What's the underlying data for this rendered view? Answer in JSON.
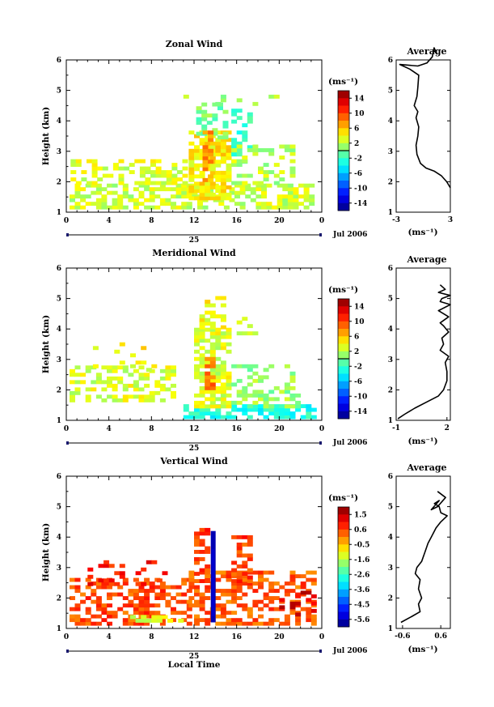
{
  "figure": {
    "date_label": "Jul 2006",
    "day_label": "25",
    "bottom_xlabel": "Local Time"
  },
  "chart_data": [
    {
      "type": "heatmap",
      "title": "Zonal Wind",
      "xlabel": "",
      "ylabel": "Height (km)",
      "xlim": [
        0,
        24
      ],
      "ylim": [
        1,
        6
      ],
      "xticks": [
        "0",
        "4",
        "8",
        "12",
        "16",
        "20",
        "0"
      ],
      "yticks": [
        "1",
        "2",
        "3",
        "4",
        "5",
        "6"
      ],
      "colorbar": {
        "unit": "(ms⁻¹)",
        "levels": [
          "14",
          "10",
          "6",
          "2",
          "-2",
          "-6",
          "-10",
          "-14"
        ],
        "range": [
          -16,
          16
        ],
        "marker": 0
      },
      "cells": [
        {
          "t0": 0.3,
          "t1": 23,
          "h0": 1.1,
          "h1": 1.9,
          "v": 2.5,
          "density": 0.55
        },
        {
          "t0": 0.4,
          "t1": 11,
          "h0": 1.9,
          "h1": 2.7,
          "v": 3,
          "density": 0.4
        },
        {
          "t0": 11.5,
          "t1": 15.5,
          "h0": 1.4,
          "h1": 3.6,
          "v": 4.5,
          "density": 0.7
        },
        {
          "t0": 12.2,
          "t1": 15.2,
          "h0": 3.4,
          "h1": 4.6,
          "v": 0,
          "density": 0.55
        },
        {
          "t0": 15.5,
          "t1": 17.5,
          "h0": 2.6,
          "h1": 4.3,
          "v": -2,
          "density": 0.5
        },
        {
          "t0": 12.8,
          "t1": 13.8,
          "h0": 2.0,
          "h1": 3.6,
          "v": 7,
          "density": 0.6
        },
        {
          "t0": 15.5,
          "t1": 21.5,
          "h0": 1.9,
          "h1": 3.2,
          "v": 2,
          "density": 0.35
        },
        {
          "t0": 11,
          "t1": 21,
          "h0": 4.5,
          "h1": 4.8,
          "v": 1,
          "density": 0.12
        }
      ],
      "profile": {
        "title": "Average",
        "xlabel": "(ms⁻¹)",
        "xlim": [
          -3,
          3
        ],
        "ylim": [
          1,
          6
        ],
        "xticks": [
          "-3",
          "3"
        ],
        "yticks": [
          "1",
          "2",
          "3",
          "4",
          "5",
          "6"
        ],
        "x": [
          3.0,
          2.6,
          2.0,
          1.2,
          0.3,
          -0.3,
          -0.7,
          -0.8,
          -0.6,
          -0.5,
          -0.8,
          -0.6,
          -1.0,
          -0.7,
          -0.6,
          -0.5,
          -1.5,
          -2.6,
          -0.6,
          0.4,
          1.0,
          1.2,
          1.5,
          1.2
        ],
        "y": [
          1.8,
          2.0,
          2.2,
          2.35,
          2.45,
          2.6,
          2.9,
          3.2,
          3.5,
          3.8,
          4.1,
          4.3,
          4.5,
          4.8,
          5.1,
          5.5,
          5.7,
          5.85,
          5.8,
          5.9,
          6.1,
          6.4,
          6.2,
          6.3
        ]
      }
    },
    {
      "type": "heatmap",
      "title": "Meridional Wind",
      "xlabel": "",
      "ylabel": "Height (km)",
      "xlim": [
        0,
        24
      ],
      "ylim": [
        1,
        6
      ],
      "xticks": [
        "0",
        "4",
        "8",
        "12",
        "16",
        "20",
        "0"
      ],
      "yticks": [
        "1",
        "2",
        "3",
        "4",
        "5",
        "6"
      ],
      "colorbar": {
        "unit": "(ms⁻¹)",
        "levels": [
          "14",
          "10",
          "6",
          "2",
          "-2",
          "-6",
          "-10",
          "-14"
        ],
        "range": [
          -16,
          16
        ],
        "marker": 0
      },
      "cells": [
        {
          "t0": 0.3,
          "t1": 10,
          "h0": 1.6,
          "h1": 2.7,
          "v": 3,
          "density": 0.5
        },
        {
          "t0": 2,
          "t1": 9,
          "h0": 2.6,
          "h1": 3.5,
          "v": 4,
          "density": 0.15
        },
        {
          "t0": 11,
          "t1": 23.5,
          "h0": 1.05,
          "h1": 1.5,
          "v": -3,
          "density": 0.7
        },
        {
          "t0": 12,
          "t1": 15.5,
          "h0": 1.4,
          "h1": 4.0,
          "v": 3,
          "density": 0.7
        },
        {
          "t0": 12.5,
          "t1": 15,
          "h0": 4.0,
          "h1": 5.0,
          "v": 4,
          "density": 0.45
        },
        {
          "t0": 13.0,
          "t1": 13.9,
          "h0": 2.0,
          "h1": 3.0,
          "v": 8,
          "density": 0.6
        },
        {
          "t0": 15.5,
          "t1": 22,
          "h0": 1.4,
          "h1": 2.8,
          "v": 1,
          "density": 0.4
        },
        {
          "t0": 16,
          "t1": 18,
          "h0": 3.8,
          "h1": 4.4,
          "v": 2,
          "density": 0.3
        }
      ],
      "profile": {
        "title": "Average",
        "xlabel": "(ms⁻¹)",
        "xlim": [
          -1,
          2.2
        ],
        "ylim": [
          1,
          6
        ],
        "xticks": [
          "-1",
          "2"
        ],
        "yticks": [
          "1",
          "2",
          "3",
          "4",
          "5",
          "6"
        ],
        "x": [
          -0.9,
          -0.5,
          0.1,
          0.8,
          1.5,
          1.8,
          2.0,
          2.0,
          1.9,
          2.1,
          1.6,
          1.8,
          1.7,
          2.1,
          1.8,
          1.6,
          2.1,
          1.5,
          2.2,
          1.6,
          1.7,
          2.2,
          1.5,
          1.9,
          1.6
        ],
        "y": [
          1.05,
          1.2,
          1.4,
          1.6,
          1.8,
          2.0,
          2.3,
          2.6,
          2.9,
          3.1,
          3.3,
          3.5,
          3.7,
          3.9,
          4.1,
          4.2,
          4.4,
          4.6,
          4.8,
          4.9,
          5.0,
          5.1,
          5.2,
          5.3,
          5.45
        ]
      }
    },
    {
      "type": "heatmap",
      "title": "Vertical Wind",
      "xlabel": "Local Time",
      "ylabel": "Height (km)",
      "xlim": [
        0,
        24
      ],
      "ylim": [
        1,
        6
      ],
      "xticks": [
        "0",
        "4",
        "8",
        "12",
        "16",
        "20",
        "0"
      ],
      "yticks": [
        "1",
        "2",
        "3",
        "4",
        "5",
        "6"
      ],
      "colorbar": {
        "unit": "(ms⁻¹)",
        "levels": [
          "1.5",
          "0.6",
          "-0.5",
          "-1.6",
          "-2.6",
          "-3.6",
          "-4.5",
          "-5.6"
        ],
        "range": [
          -6,
          2
        ],
        "marker": null
      },
      "cells": [
        {
          "t0": 0.3,
          "t1": 11.5,
          "h0": 1.1,
          "h1": 2.6,
          "v": 0.4,
          "density": 0.55
        },
        {
          "t0": 1,
          "t1": 10,
          "h0": 2.4,
          "h1": 3.2,
          "v": 0.8,
          "density": 0.2
        },
        {
          "t0": 11.5,
          "t1": 23.5,
          "h0": 1.1,
          "h1": 2.8,
          "v": 0.3,
          "density": 0.55
        },
        {
          "t0": 12,
          "t1": 13.5,
          "h0": 2.5,
          "h1": 4.2,
          "v": 0.6,
          "density": 0.5
        },
        {
          "t0": 15.5,
          "t1": 17.5,
          "h0": 2.5,
          "h1": 4.0,
          "v": 0.5,
          "density": 0.5
        },
        {
          "t0": 6,
          "t1": 11,
          "h0": 1.2,
          "h1": 1.35,
          "v": -1.2,
          "density": 0.6
        },
        {
          "t0": 20,
          "t1": 23.5,
          "h0": 1.4,
          "h1": 2.2,
          "v": 1.2,
          "density": 0.3
        }
      ],
      "core": {
        "t": 13.8,
        "h0": 1.2,
        "h1": 4.2,
        "v": -5.6
      },
      "profile": {
        "title": "Average",
        "xlabel": "(ms⁻¹)",
        "xlim": [
          -0.8,
          0.9
        ],
        "ylim": [
          1,
          6
        ],
        "xticks": [
          "-0.6",
          "0.6"
        ],
        "yticks": [
          "1",
          "2",
          "3",
          "4",
          "5",
          "6"
        ],
        "x": [
          -0.65,
          -0.3,
          -0.05,
          -0.1,
          0.0,
          -0.1,
          -0.05,
          -0.2,
          -0.15,
          0.0,
          0.1,
          0.2,
          0.3,
          0.45,
          0.6,
          0.8,
          0.6,
          0.55,
          0.4,
          0.55,
          0.3,
          0.5,
          0.75,
          0.5
        ],
        "y": [
          1.2,
          1.4,
          1.55,
          1.8,
          2.0,
          2.3,
          2.6,
          2.8,
          3.0,
          3.2,
          3.5,
          3.8,
          4.0,
          4.3,
          4.5,
          4.7,
          4.8,
          5.0,
          5.1,
          5.2,
          4.9,
          5.0,
          5.3,
          5.5
        ]
      }
    }
  ]
}
